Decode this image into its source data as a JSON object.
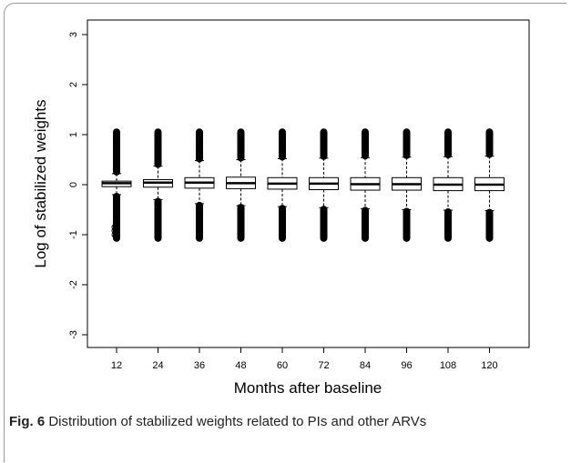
{
  "chart_data": {
    "type": "boxplot",
    "ylabel": "Log of stabilized weights",
    "xlabel": "Months after baseline",
    "ylim": [
      -3.2,
      3.2
    ],
    "yticks": [
      "3",
      "2",
      "1",
      "0",
      "-1",
      "-2",
      "-3"
    ],
    "ytick_values": [
      3,
      2,
      1,
      0,
      -1,
      -2,
      -3
    ],
    "categories": [
      "12",
      "24",
      "36",
      "48",
      "60",
      "72",
      "84",
      "96",
      "108",
      "120"
    ],
    "boxes": [
      {
        "q1": -0.04,
        "median": 0.03,
        "q3": 0.07,
        "whisker_low": -0.2,
        "whisker_high": 0.22,
        "outlier_low": -1.07,
        "outlier_high": 1.05
      },
      {
        "q1": -0.05,
        "median": 0.04,
        "q3": 0.1,
        "whisker_low": -0.3,
        "whisker_high": 0.37,
        "outlier_low": -1.07,
        "outlier_high": 1.05
      },
      {
        "q1": -0.07,
        "median": 0.04,
        "q3": 0.14,
        "whisker_low": -0.38,
        "whisker_high": 0.48,
        "outlier_low": -1.07,
        "outlier_high": 1.05
      },
      {
        "q1": -0.08,
        "median": 0.03,
        "q3": 0.15,
        "whisker_low": -0.42,
        "whisker_high": 0.5,
        "outlier_low": -1.07,
        "outlier_high": 1.05
      },
      {
        "q1": -0.09,
        "median": 0.02,
        "q3": 0.14,
        "whisker_low": -0.44,
        "whisker_high": 0.52,
        "outlier_low": -1.07,
        "outlier_high": 1.05
      },
      {
        "q1": -0.1,
        "median": 0.02,
        "q3": 0.14,
        "whisker_low": -0.46,
        "whisker_high": 0.53,
        "outlier_low": -1.07,
        "outlier_high": 1.05
      },
      {
        "q1": -0.11,
        "median": 0.01,
        "q3": 0.14,
        "whisker_low": -0.48,
        "whisker_high": 0.54,
        "outlier_low": -1.07,
        "outlier_high": 1.05
      },
      {
        "q1": -0.11,
        "median": 0.01,
        "q3": 0.14,
        "whisker_low": -0.5,
        "whisker_high": 0.55,
        "outlier_low": -1.07,
        "outlier_high": 1.05
      },
      {
        "q1": -0.12,
        "median": 0.0,
        "q3": 0.14,
        "whisker_low": -0.51,
        "whisker_high": 0.56,
        "outlier_low": -1.07,
        "outlier_high": 1.05
      },
      {
        "q1": -0.12,
        "median": 0.0,
        "q3": 0.14,
        "whisker_low": -0.52,
        "whisker_high": 0.57,
        "outlier_low": -1.07,
        "outlier_high": 1.05
      }
    ],
    "legend": "none",
    "grid": false
  },
  "caption": {
    "label": "Fig. 6",
    "text": " Distribution of stabilized weights related to PIs and other ARVs"
  }
}
